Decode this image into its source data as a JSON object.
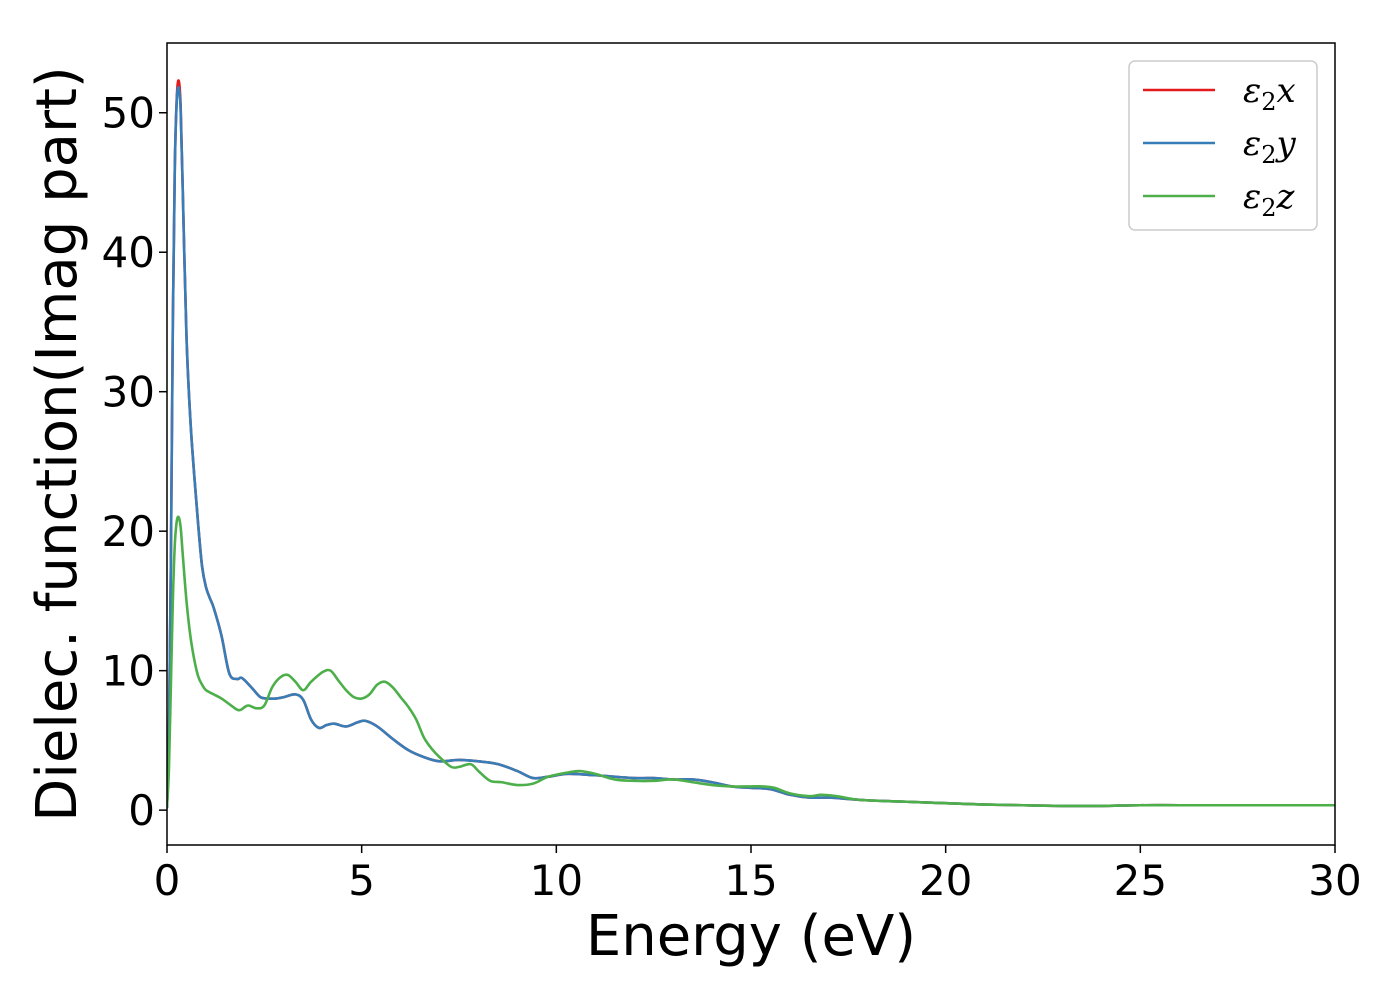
{
  "chart_data": {
    "type": "line",
    "title": "",
    "xlabel": "Energy (eV)",
    "ylabel": "Dielec. function(Imag part)",
    "xlim": [
      0,
      30
    ],
    "ylim": [
      -2.5,
      55
    ],
    "xticks": [
      0,
      5,
      10,
      15,
      20,
      25,
      30
    ],
    "yticks": [
      0,
      10,
      20,
      30,
      40,
      50
    ],
    "grid": false,
    "legend_position": "top-right",
    "series": [
      {
        "name": "ε₂x",
        "symbol": "ε",
        "sub": "2",
        "axis": "x",
        "color": "#e41a1c",
        "x": [
          0,
          0.05,
          0.1,
          0.15,
          0.2,
          0.25,
          0.3,
          0.35,
          0.4,
          0.5,
          0.6,
          0.7,
          0.8,
          0.9,
          1.0,
          1.1,
          1.2,
          1.4,
          1.6,
          1.8,
          1.9,
          2.0,
          2.2,
          2.4,
          2.6,
          2.8,
          3.0,
          3.3,
          3.5,
          3.7,
          3.9,
          4.1,
          4.3,
          4.6,
          4.9,
          5.1,
          5.4,
          5.8,
          6.2,
          6.6,
          7.0,
          7.5,
          8.0,
          8.5,
          9.0,
          9.4,
          9.8,
          10.3,
          11.0,
          12.0,
          12.5,
          13.0,
          13.5,
          14.0,
          14.5,
          15.0,
          15.5,
          16.0,
          16.5,
          17.0,
          17.5,
          18.0,
          19.0,
          20.0,
          21.0,
          22.0,
          23.0,
          24.0,
          25.0,
          26.0,
          27.0,
          28.0,
          29.0,
          30.0
        ],
        "values": [
          0.2,
          5,
          18,
          35,
          46,
          51,
          52.3,
          50.5,
          45,
          34,
          28,
          24,
          20.5,
          17.5,
          16,
          15.2,
          14.5,
          12.5,
          9.8,
          9.4,
          9.5,
          9.3,
          8.7,
          8.1,
          8.0,
          8.0,
          8.1,
          8.3,
          7.9,
          6.5,
          5.9,
          6.1,
          6.2,
          6.0,
          6.3,
          6.4,
          6.0,
          5.1,
          4.3,
          3.8,
          3.5,
          3.6,
          3.5,
          3.3,
          2.8,
          2.3,
          2.4,
          2.6,
          2.5,
          2.3,
          2.3,
          2.2,
          2.2,
          2.0,
          1.7,
          1.6,
          1.5,
          1.1,
          0.9,
          0.9,
          0.8,
          0.7,
          0.6,
          0.5,
          0.4,
          0.35,
          0.3,
          0.3,
          0.35,
          0.35,
          0.35,
          0.35,
          0.35,
          0.35
        ]
      },
      {
        "name": "ε₂y",
        "symbol": "ε",
        "sub": "2",
        "axis": "y",
        "color": "#377eb8",
        "x": [
          0,
          0.05,
          0.1,
          0.15,
          0.2,
          0.25,
          0.3,
          0.35,
          0.4,
          0.5,
          0.6,
          0.7,
          0.8,
          0.9,
          1.0,
          1.1,
          1.2,
          1.4,
          1.6,
          1.8,
          1.9,
          2.0,
          2.2,
          2.4,
          2.6,
          2.8,
          3.0,
          3.3,
          3.5,
          3.7,
          3.9,
          4.1,
          4.3,
          4.6,
          4.9,
          5.1,
          5.4,
          5.8,
          6.2,
          6.6,
          7.0,
          7.5,
          8.0,
          8.5,
          9.0,
          9.4,
          9.8,
          10.3,
          11.0,
          12.0,
          12.5,
          13.0,
          13.5,
          14.0,
          14.5,
          15.0,
          15.5,
          16.0,
          16.5,
          17.0,
          17.5,
          18.0,
          19.0,
          20.0,
          21.0,
          22.0,
          23.0,
          24.0,
          25.0,
          26.0,
          27.0,
          28.0,
          29.0,
          30.0
        ],
        "values": [
          0.2,
          5,
          18,
          35,
          46,
          50.8,
          51.8,
          50.2,
          45,
          34,
          28,
          24,
          20.5,
          17.5,
          16,
          15.2,
          14.5,
          12.5,
          9.8,
          9.4,
          9.5,
          9.3,
          8.7,
          8.1,
          8.0,
          8.0,
          8.1,
          8.3,
          7.9,
          6.5,
          5.9,
          6.1,
          6.2,
          6.0,
          6.3,
          6.4,
          6.0,
          5.1,
          4.3,
          3.8,
          3.5,
          3.6,
          3.5,
          3.3,
          2.8,
          2.3,
          2.4,
          2.6,
          2.5,
          2.3,
          2.3,
          2.2,
          2.2,
          2.0,
          1.7,
          1.6,
          1.5,
          1.1,
          0.9,
          0.9,
          0.8,
          0.7,
          0.6,
          0.5,
          0.4,
          0.35,
          0.3,
          0.3,
          0.35,
          0.35,
          0.35,
          0.35,
          0.35,
          0.35
        ]
      },
      {
        "name": "ε₂z",
        "symbol": "ε",
        "sub": "2",
        "axis": "z",
        "color": "#4daf4a",
        "x": [
          0,
          0.05,
          0.1,
          0.15,
          0.2,
          0.25,
          0.3,
          0.35,
          0.4,
          0.5,
          0.6,
          0.7,
          0.8,
          0.9,
          1.0,
          1.2,
          1.4,
          1.6,
          1.8,
          1.9,
          2.0,
          2.1,
          2.3,
          2.5,
          2.7,
          2.9,
          3.1,
          3.3,
          3.5,
          3.7,
          4.0,
          4.2,
          4.4,
          4.6,
          4.8,
          5.0,
          5.2,
          5.4,
          5.6,
          5.8,
          6.0,
          6.2,
          6.4,
          6.6,
          6.8,
          7.0,
          7.3,
          7.5,
          7.8,
          8.0,
          8.3,
          8.6,
          9.0,
          9.4,
          9.8,
          10.3,
          10.6,
          11.0,
          11.5,
          12.0,
          12.5,
          13.0,
          13.5,
          14.0,
          14.5,
          15.0,
          15.3,
          15.6,
          16.0,
          16.5,
          16.8,
          17.2,
          17.6,
          18.0,
          19.0,
          20.0,
          21.0,
          22.0,
          23.0,
          24.0,
          25.0,
          26.0,
          27.0,
          28.0,
          29.0,
          30.0
        ],
        "values": [
          0.2,
          3,
          9,
          15,
          19,
          20.7,
          21.0,
          20.3,
          18.5,
          15,
          12.5,
          10.8,
          9.6,
          9.0,
          8.6,
          8.3,
          8.0,
          7.6,
          7.2,
          7.2,
          7.4,
          7.5,
          7.3,
          7.5,
          8.8,
          9.5,
          9.7,
          9.2,
          8.6,
          9.2,
          9.9,
          10.0,
          9.3,
          8.6,
          8.1,
          8.0,
          8.3,
          9.0,
          9.2,
          8.8,
          8.1,
          7.4,
          6.5,
          5.2,
          4.4,
          3.8,
          3.1,
          3.1,
          3.3,
          2.8,
          2.1,
          2.0,
          1.8,
          1.9,
          2.4,
          2.7,
          2.8,
          2.6,
          2.2,
          2.1,
          2.1,
          2.2,
          2.0,
          1.8,
          1.7,
          1.7,
          1.7,
          1.6,
          1.2,
          1.0,
          1.1,
          1.0,
          0.8,
          0.7,
          0.6,
          0.5,
          0.4,
          0.35,
          0.3,
          0.3,
          0.35,
          0.35,
          0.35,
          0.35,
          0.35,
          0.35
        ]
      }
    ]
  }
}
